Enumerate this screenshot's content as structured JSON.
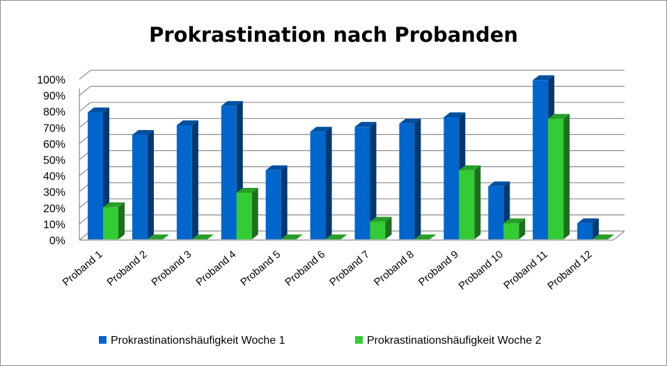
{
  "chart_data": {
    "type": "bar",
    "title": "Prokrastination nach Probanden",
    "categories": [
      "Proband 1",
      "Proband 2",
      "Proband 3",
      "Proband 4",
      "Proband 5",
      "Proband 6",
      "Proband 7",
      "Proband 8",
      "Proband 9",
      "Proband 10",
      "Proband 11",
      "Proband 12"
    ],
    "series": [
      {
        "name": "Prokrastinationshäufigkeit Woche 1",
        "values": [
          79,
          65,
          71,
          83,
          43,
          67,
          70,
          72,
          76,
          33,
          99,
          10
        ],
        "color": "#0066cc"
      },
      {
        "name": "Prokrastinationshäufigkeit Woche 2",
        "values": [
          20,
          0,
          0,
          29,
          0,
          0,
          11,
          0,
          43,
          10,
          75,
          0
        ],
        "color": "#33cc33"
      }
    ],
    "ylim": [
      0,
      100
    ],
    "yticks": [
      "0%",
      "10%",
      "20%",
      "30%",
      "40%",
      "50%",
      "60%",
      "70%",
      "80%",
      "90%",
      "100%"
    ],
    "grid": true,
    "legend_position": "bottom",
    "style": "3d-clustered-column"
  }
}
